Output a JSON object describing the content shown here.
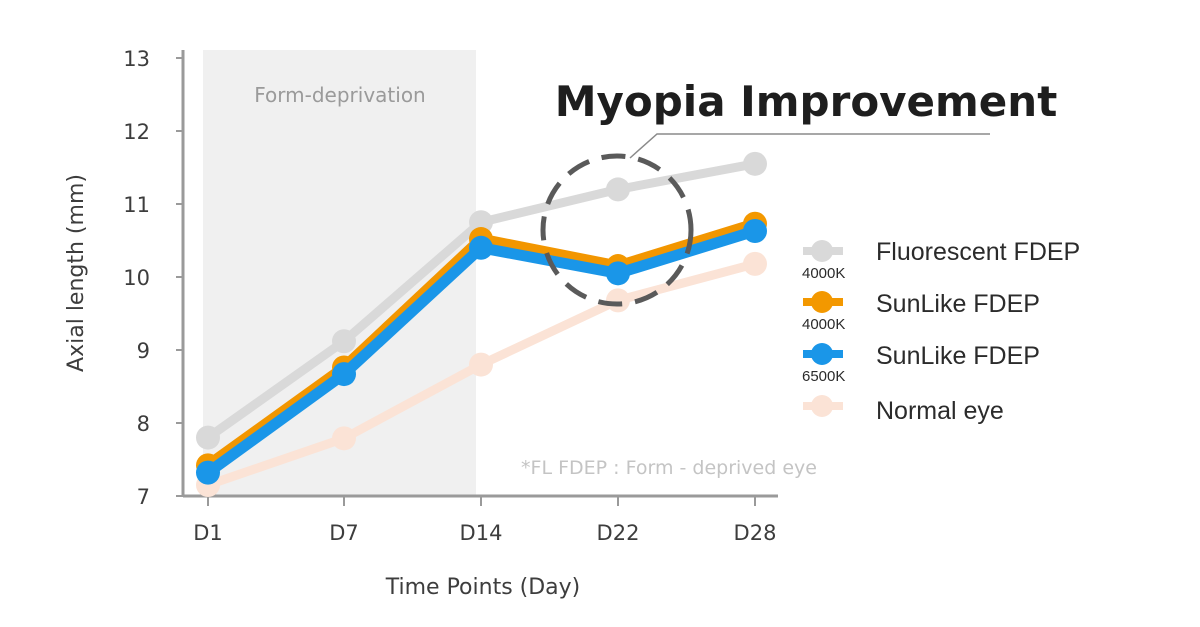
{
  "chart_data": {
    "type": "line",
    "title": "Myopia Improvement",
    "xlabel": "Time Points (Day)",
    "ylabel": "Axial length  (mm)",
    "categories": [
      "D1",
      "D7",
      "D14",
      "D22",
      "D28"
    ],
    "ylim": [
      7,
      13
    ],
    "yticks": [
      7,
      8,
      9,
      10,
      11,
      12,
      13
    ],
    "grid": false,
    "legend_position": "right",
    "shaded_region": {
      "label": "Form-deprivation",
      "from": "D1",
      "to": "D14"
    },
    "footnote": "*FL FDEP : Form - deprived eye",
    "highlight": {
      "category": "D22",
      "label": "Myopia Improvement"
    },
    "series": [
      {
        "name": "Fluorescent FDEP",
        "sublabel": "4000K",
        "color": "#d9d9d9",
        "values": [
          7.8,
          9.12,
          10.75,
          11.2,
          11.55
        ]
      },
      {
        "name": "SunLike FDEP",
        "sublabel": "4000K",
        "color": "#f39800",
        "values": [
          7.42,
          8.76,
          10.52,
          10.15,
          10.73
        ]
      },
      {
        "name": "SunLike FDEP",
        "sublabel": "6500K",
        "color": "#1a96e8",
        "values": [
          7.32,
          8.67,
          10.4,
          10.05,
          10.63
        ]
      },
      {
        "name": "Normal eye",
        "sublabel": "",
        "color": "#fbe3d6",
        "values": [
          7.15,
          7.79,
          8.8,
          9.68,
          10.18
        ]
      }
    ]
  }
}
